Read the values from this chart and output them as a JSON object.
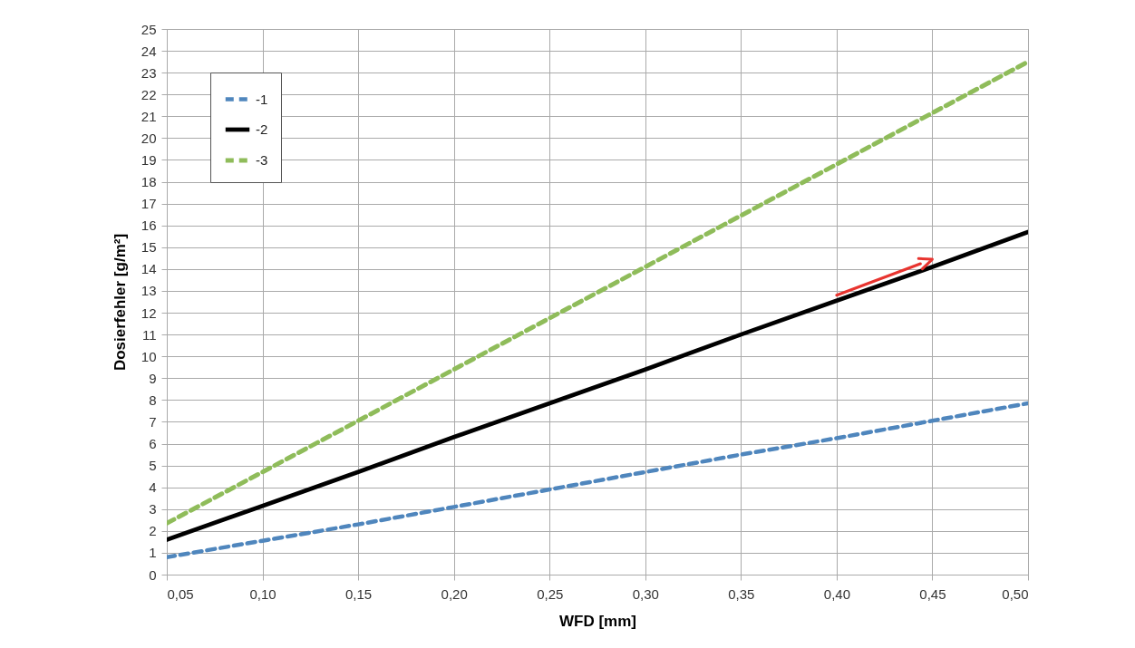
{
  "chart_data": {
    "type": "line",
    "xlabel": "WFD [mm]",
    "ylabel": "Dosierfehler [g/m²]",
    "x": [
      0.05,
      0.1,
      0.15,
      0.2,
      0.25,
      0.3,
      0.35,
      0.4,
      0.45,
      0.5
    ],
    "series": [
      {
        "name": "-1",
        "color": "#4f86bd",
        "line_style": "dashed",
        "values": [
          0.8,
          1.55,
          2.3,
          3.1,
          3.9,
          4.7,
          5.5,
          6.25,
          7.05,
          7.85
        ]
      },
      {
        "name": "-2",
        "color": "#000000",
        "line_style": "solid",
        "values": [
          1.6,
          3.15,
          4.7,
          6.3,
          7.85,
          9.4,
          11.0,
          12.55,
          14.1,
          15.7
        ]
      },
      {
        "name": "-3",
        "color": "#8fbc5a",
        "line_style": "dashed",
        "values": [
          2.35,
          4.7,
          7.05,
          9.4,
          11.75,
          14.1,
          16.45,
          18.8,
          21.15,
          23.5
        ]
      }
    ],
    "xlim": [
      0.05,
      0.5
    ],
    "xticks": [
      {
        "value": 0.05,
        "label": "0,05"
      },
      {
        "value": 0.1,
        "label": "0,10"
      },
      {
        "value": 0.15,
        "label": "0,15"
      },
      {
        "value": 0.2,
        "label": "0,20"
      },
      {
        "value": 0.25,
        "label": "0,25"
      },
      {
        "value": 0.3,
        "label": "0,30"
      },
      {
        "value": 0.35,
        "label": "0,35"
      },
      {
        "value": 0.4,
        "label": "0,40"
      },
      {
        "value": 0.45,
        "label": "0,45"
      },
      {
        "value": 0.5,
        "label": "0,50"
      }
    ],
    "ylim": [
      0,
      25
    ],
    "yticks": [
      0,
      1,
      2,
      3,
      4,
      5,
      6,
      7,
      8,
      9,
      10,
      11,
      12,
      13,
      14,
      15,
      16,
      17,
      18,
      19,
      20,
      21,
      22,
      23,
      24,
      25
    ],
    "grid": true,
    "legend": "top left"
  }
}
